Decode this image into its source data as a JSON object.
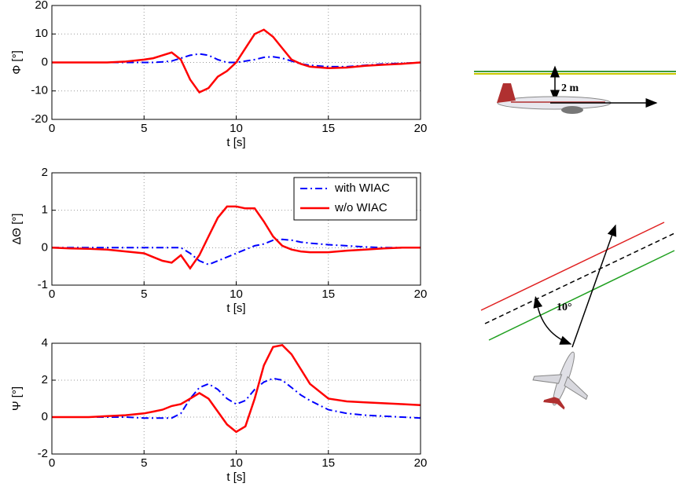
{
  "chart_data": [
    {
      "type": "line",
      "ylabel": "Φ [°]",
      "xlabel": "t [s]",
      "x": [
        0,
        1,
        2,
        3,
        4,
        5,
        5.5,
        6,
        6.5,
        7,
        7.5,
        8,
        8.5,
        9,
        9.5,
        10,
        10.5,
        11,
        11.5,
        12,
        12.5,
        13,
        13.5,
        14,
        15,
        16,
        17,
        18,
        19,
        20
      ],
      "series": [
        {
          "color": "#0000ff",
          "style": "dashdot",
          "values": [
            0,
            0,
            0,
            0,
            0,
            0,
            0,
            0.2,
            0.5,
            1.5,
            2.5,
            3,
            2.5,
            1,
            0,
            0,
            0.5,
            1,
            1.8,
            2,
            1.5,
            0.5,
            -0.5,
            -1,
            -1.5,
            -1.5,
            -1,
            -0.5,
            -0.3,
            0
          ]
        },
        {
          "color": "#ff0000",
          "style": "solid",
          "values": [
            0,
            0,
            0,
            0,
            0.3,
            1,
            1.5,
            2.5,
            3.5,
            1,
            -6,
            -10.5,
            -9,
            -5,
            -3,
            0,
            5,
            10,
            11.5,
            9,
            5,
            1,
            -0.5,
            -1.5,
            -2,
            -1.8,
            -1.2,
            -0.8,
            -0.5,
            0
          ]
        }
      ],
      "xlim": [
        0,
        20
      ],
      "xticks": [
        0,
        5,
        10,
        15,
        20
      ],
      "ylim": [
        -20,
        20
      ],
      "yticks": [
        -20,
        -10,
        0,
        10,
        20
      ],
      "grid": true
    },
    {
      "type": "line",
      "ylabel": "ΔΘ [°]",
      "xlabel": "t [s]",
      "x": [
        0,
        1,
        2,
        3,
        4,
        5,
        5.5,
        6,
        6.5,
        7,
        7.5,
        8,
        8.5,
        9,
        9.5,
        10,
        10.5,
        11,
        11.5,
        12,
        12.5,
        13,
        13.5,
        14,
        15,
        16,
        17,
        18,
        19,
        20
      ],
      "series": [
        {
          "name": "with WIAC",
          "color": "#0000ff",
          "style": "dashdot",
          "values": [
            0,
            0,
            0,
            0,
            0,
            0,
            0,
            0,
            0,
            0,
            -0.15,
            -0.35,
            -0.45,
            -0.35,
            -0.25,
            -0.15,
            -0.05,
            0.05,
            0.1,
            0.2,
            0.22,
            0.2,
            0.15,
            0.12,
            0.08,
            0.05,
            0.02,
            0,
            0,
            0
          ]
        },
        {
          "name": "w/o WIAC",
          "color": "#ff0000",
          "style": "solid",
          "values": [
            0,
            -0.02,
            -0.03,
            -0.05,
            -0.1,
            -0.15,
            -0.25,
            -0.35,
            -0.4,
            -0.2,
            -0.55,
            -0.2,
            0.3,
            0.8,
            1.1,
            1.1,
            1.05,
            1.05,
            0.7,
            0.3,
            0.05,
            -0.05,
            -0.1,
            -0.12,
            -0.12,
            -0.08,
            -0.05,
            -0.02,
            0,
            0
          ]
        }
      ],
      "xlim": [
        0,
        20
      ],
      "xticks": [
        0,
        5,
        10,
        15,
        20
      ],
      "ylim": [
        -1,
        2
      ],
      "yticks": [
        -1,
        0,
        1,
        2
      ],
      "grid": true,
      "legend": "upper right"
    },
    {
      "type": "line",
      "ylabel": "Ψ [°]",
      "xlabel": "t [s]",
      "x": [
        0,
        1,
        2,
        3,
        4,
        5,
        5.5,
        6,
        6.5,
        7,
        7.5,
        8,
        8.5,
        9,
        9.5,
        10,
        10.5,
        11,
        11.5,
        12,
        12.5,
        13,
        13.5,
        14,
        15,
        16,
        17,
        18,
        19,
        20
      ],
      "series": [
        {
          "color": "#0000ff",
          "style": "dashdot",
          "values": [
            0,
            0,
            0,
            0,
            0,
            -0.05,
            -0.05,
            -0.05,
            -0.05,
            0.2,
            1,
            1.6,
            1.8,
            1.5,
            1,
            0.7,
            0.9,
            1.5,
            1.9,
            2.1,
            2,
            1.6,
            1.2,
            0.9,
            0.4,
            0.2,
            0.1,
            0.05,
            0,
            -0.05
          ]
        },
        {
          "color": "#ff0000",
          "style": "solid",
          "values": [
            0,
            0,
            0,
            0.05,
            0.1,
            0.2,
            0.3,
            0.4,
            0.6,
            0.7,
            1,
            1.3,
            1,
            0.3,
            -0.4,
            -0.8,
            -0.5,
            1,
            2.8,
            3.8,
            3.9,
            3.4,
            2.6,
            1.8,
            1,
            0.85,
            0.8,
            0.75,
            0.7,
            0.65
          ]
        }
      ],
      "xlim": [
        0,
        20
      ],
      "xticks": [
        0,
        5,
        10,
        15,
        20
      ],
      "ylim": [
        -2,
        4
      ],
      "yticks": [
        -2,
        0,
        2,
        4
      ],
      "grid": true
    }
  ],
  "diagrams": {
    "height_label": "2 m",
    "angle_label": "10°"
  }
}
